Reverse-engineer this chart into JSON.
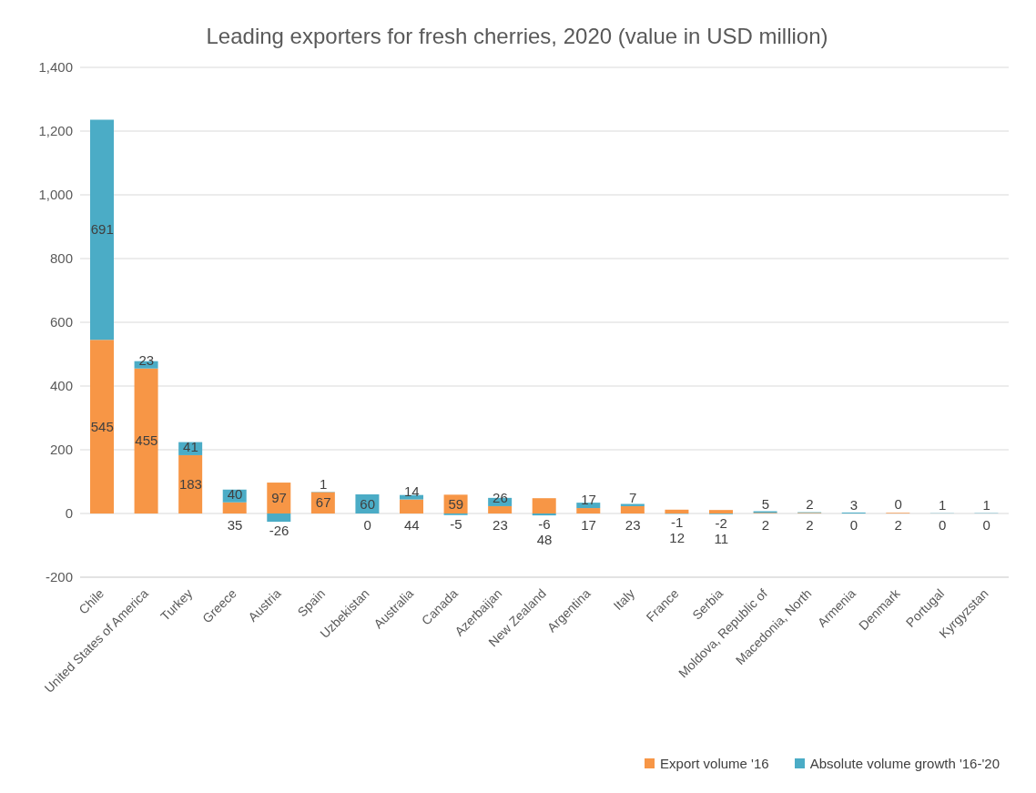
{
  "chart_data": {
    "type": "bar",
    "title": "Leading exporters for fresh cherries, 2020 (value in USD million)",
    "categories": [
      "Chile",
      "United States of America",
      "Turkey",
      "Greece",
      "Austria",
      "Spain",
      "Uzbekistan",
      "Australia",
      "Canada",
      "Azerbaijan",
      "New Zealand",
      "Argentina",
      "Italy",
      "France",
      "Serbia",
      "Moldova, Republic of",
      "Macedonia, North",
      "Armenia",
      "Denmark",
      "Portugal",
      "Kyrgyzstan"
    ],
    "series": [
      {
        "name": "Export volume '16",
        "color": "#f79646",
        "values": [
          545,
          455,
          183,
          35,
          97,
          67,
          0,
          44,
          59,
          23,
          48,
          17,
          23,
          12,
          11,
          2,
          2,
          0,
          2,
          0,
          0
        ]
      },
      {
        "name": "Absolute volume growth '16-'20",
        "color": "#4bacc6",
        "values": [
          691,
          23,
          41,
          40,
          -26,
          1,
          60,
          14,
          -5,
          26,
          -6,
          17,
          7,
          -1,
          -2,
          5,
          2,
          3,
          0,
          1,
          1
        ]
      }
    ],
    "stacked": true,
    "data_labels": true,
    "ylim": [
      -200,
      1400
    ],
    "yticks": [
      {
        "value": -200,
        "label": "-200"
      },
      0,
      200,
      400,
      600,
      800,
      {
        "value": 1000,
        "label": "1,000"
      },
      {
        "value": 1200,
        "label": "1,200"
      },
      {
        "value": 1400,
        "label": "1,400"
      }
    ],
    "grid": "y",
    "legend": "bottom right"
  }
}
